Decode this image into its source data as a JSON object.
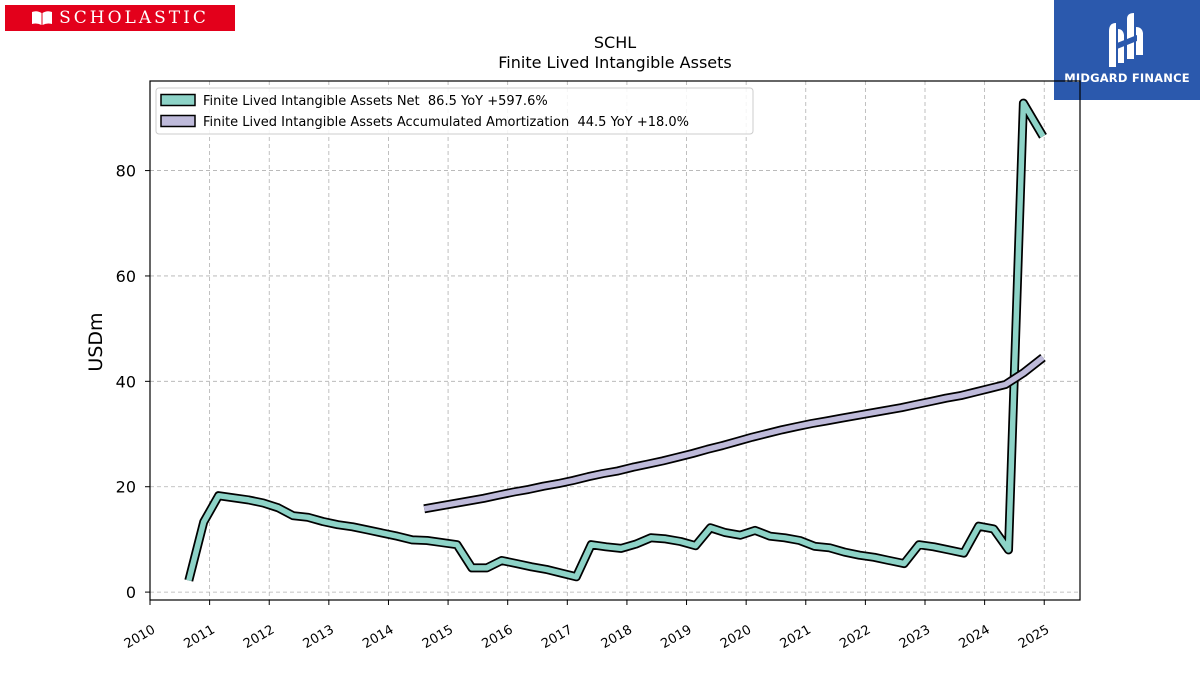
{
  "branding": {
    "left_logo_text": "SCHOLASTIC",
    "right_logo_text": "MIDGARD FINANCE",
    "left_color": "#e3001b",
    "right_color": "#2b59ad"
  },
  "chart_data": {
    "type": "line",
    "title": "SCHL",
    "subtitle": "Finite Lived Intangible Assets",
    "xlabel": "",
    "ylabel": "USDm",
    "xlim": [
      2010,
      2025.6
    ],
    "ylim": [
      -1.5,
      97
    ],
    "yticks": [
      0,
      20,
      40,
      60,
      80
    ],
    "xticks": [
      2010,
      2011,
      2012,
      2013,
      2014,
      2015,
      2016,
      2017,
      2018,
      2019,
      2020,
      2021,
      2022,
      2023,
      2024,
      2025
    ],
    "grid": true,
    "legend_position": "top-left",
    "series": [
      {
        "name": "Finite Lived Intangible Assets Net",
        "legend_label": "Finite Lived Intangible Assets Net  86.5 YoY +597.6%",
        "color": "#8dd3c7",
        "points": [
          [
            2010.65,
            2.2
          ],
          [
            2010.9,
            13.3
          ],
          [
            2011.15,
            18.3
          ],
          [
            2011.4,
            17.9
          ],
          [
            2011.65,
            17.5
          ],
          [
            2011.9,
            16.9
          ],
          [
            2012.15,
            16.0
          ],
          [
            2012.4,
            14.5
          ],
          [
            2012.65,
            14.2
          ],
          [
            2012.9,
            13.4
          ],
          [
            2013.15,
            12.8
          ],
          [
            2013.4,
            12.4
          ],
          [
            2013.65,
            11.8
          ],
          [
            2013.9,
            11.2
          ],
          [
            2014.15,
            10.6
          ],
          [
            2014.4,
            9.9
          ],
          [
            2014.65,
            9.8
          ],
          [
            2014.9,
            9.4
          ],
          [
            2015.15,
            9.0
          ],
          [
            2015.4,
            4.6
          ],
          [
            2015.65,
            4.6
          ],
          [
            2015.9,
            6.0
          ],
          [
            2016.15,
            5.4
          ],
          [
            2016.4,
            4.8
          ],
          [
            2016.65,
            4.3
          ],
          [
            2016.9,
            3.6
          ],
          [
            2017.15,
            2.9
          ],
          [
            2017.4,
            9.0
          ],
          [
            2017.65,
            8.6
          ],
          [
            2017.9,
            8.3
          ],
          [
            2018.15,
            9.1
          ],
          [
            2018.4,
            10.3
          ],
          [
            2018.65,
            10.1
          ],
          [
            2018.9,
            9.6
          ],
          [
            2019.15,
            8.8
          ],
          [
            2019.4,
            12.2
          ],
          [
            2019.65,
            11.3
          ],
          [
            2019.9,
            10.8
          ],
          [
            2020.15,
            11.7
          ],
          [
            2020.4,
            10.6
          ],
          [
            2020.65,
            10.3
          ],
          [
            2020.9,
            9.8
          ],
          [
            2021.15,
            8.7
          ],
          [
            2021.4,
            8.4
          ],
          [
            2021.65,
            7.6
          ],
          [
            2021.9,
            7.0
          ],
          [
            2022.15,
            6.6
          ],
          [
            2022.4,
            6.0
          ],
          [
            2022.65,
            5.4
          ],
          [
            2022.9,
            9.0
          ],
          [
            2023.15,
            8.6
          ],
          [
            2023.4,
            8.0
          ],
          [
            2023.65,
            7.4
          ],
          [
            2023.9,
            12.5
          ],
          [
            2024.15,
            12.0
          ],
          [
            2024.4,
            8.0
          ],
          [
            2024.65,
            92.8
          ],
          [
            2024.98,
            86.5
          ]
        ]
      },
      {
        "name": "Finite Lived Intangible Assets Accumulated Amortization",
        "legend_label": "Finite Lived Intangible Assets Accumulated Amortization  44.5 YoY +18.0%",
        "color": "#bebada",
        "points": [
          [
            2014.6,
            15.8
          ],
          [
            2014.85,
            16.3
          ],
          [
            2015.1,
            16.8
          ],
          [
            2015.35,
            17.3
          ],
          [
            2015.6,
            17.8
          ],
          [
            2015.85,
            18.4
          ],
          [
            2016.1,
            19.0
          ],
          [
            2016.35,
            19.5
          ],
          [
            2016.6,
            20.1
          ],
          [
            2016.85,
            20.6
          ],
          [
            2017.1,
            21.2
          ],
          [
            2017.35,
            21.9
          ],
          [
            2017.6,
            22.5
          ],
          [
            2017.85,
            23.0
          ],
          [
            2018.1,
            23.7
          ],
          [
            2018.35,
            24.3
          ],
          [
            2018.6,
            24.9
          ],
          [
            2018.85,
            25.6
          ],
          [
            2019.1,
            26.3
          ],
          [
            2019.35,
            27.1
          ],
          [
            2019.6,
            27.8
          ],
          [
            2019.85,
            28.6
          ],
          [
            2020.1,
            29.4
          ],
          [
            2020.35,
            30.1
          ],
          [
            2020.6,
            30.8
          ],
          [
            2020.85,
            31.4
          ],
          [
            2021.1,
            32.0
          ],
          [
            2021.35,
            32.5
          ],
          [
            2021.6,
            33.0
          ],
          [
            2021.85,
            33.5
          ],
          [
            2022.1,
            34.0
          ],
          [
            2022.35,
            34.5
          ],
          [
            2022.6,
            35.0
          ],
          [
            2022.85,
            35.6
          ],
          [
            2023.1,
            36.2
          ],
          [
            2023.35,
            36.8
          ],
          [
            2023.6,
            37.3
          ],
          [
            2023.85,
            38.0
          ],
          [
            2024.1,
            38.7
          ],
          [
            2024.35,
            39.4
          ],
          [
            2024.65,
            41.6
          ],
          [
            2024.98,
            44.5
          ]
        ]
      }
    ]
  }
}
